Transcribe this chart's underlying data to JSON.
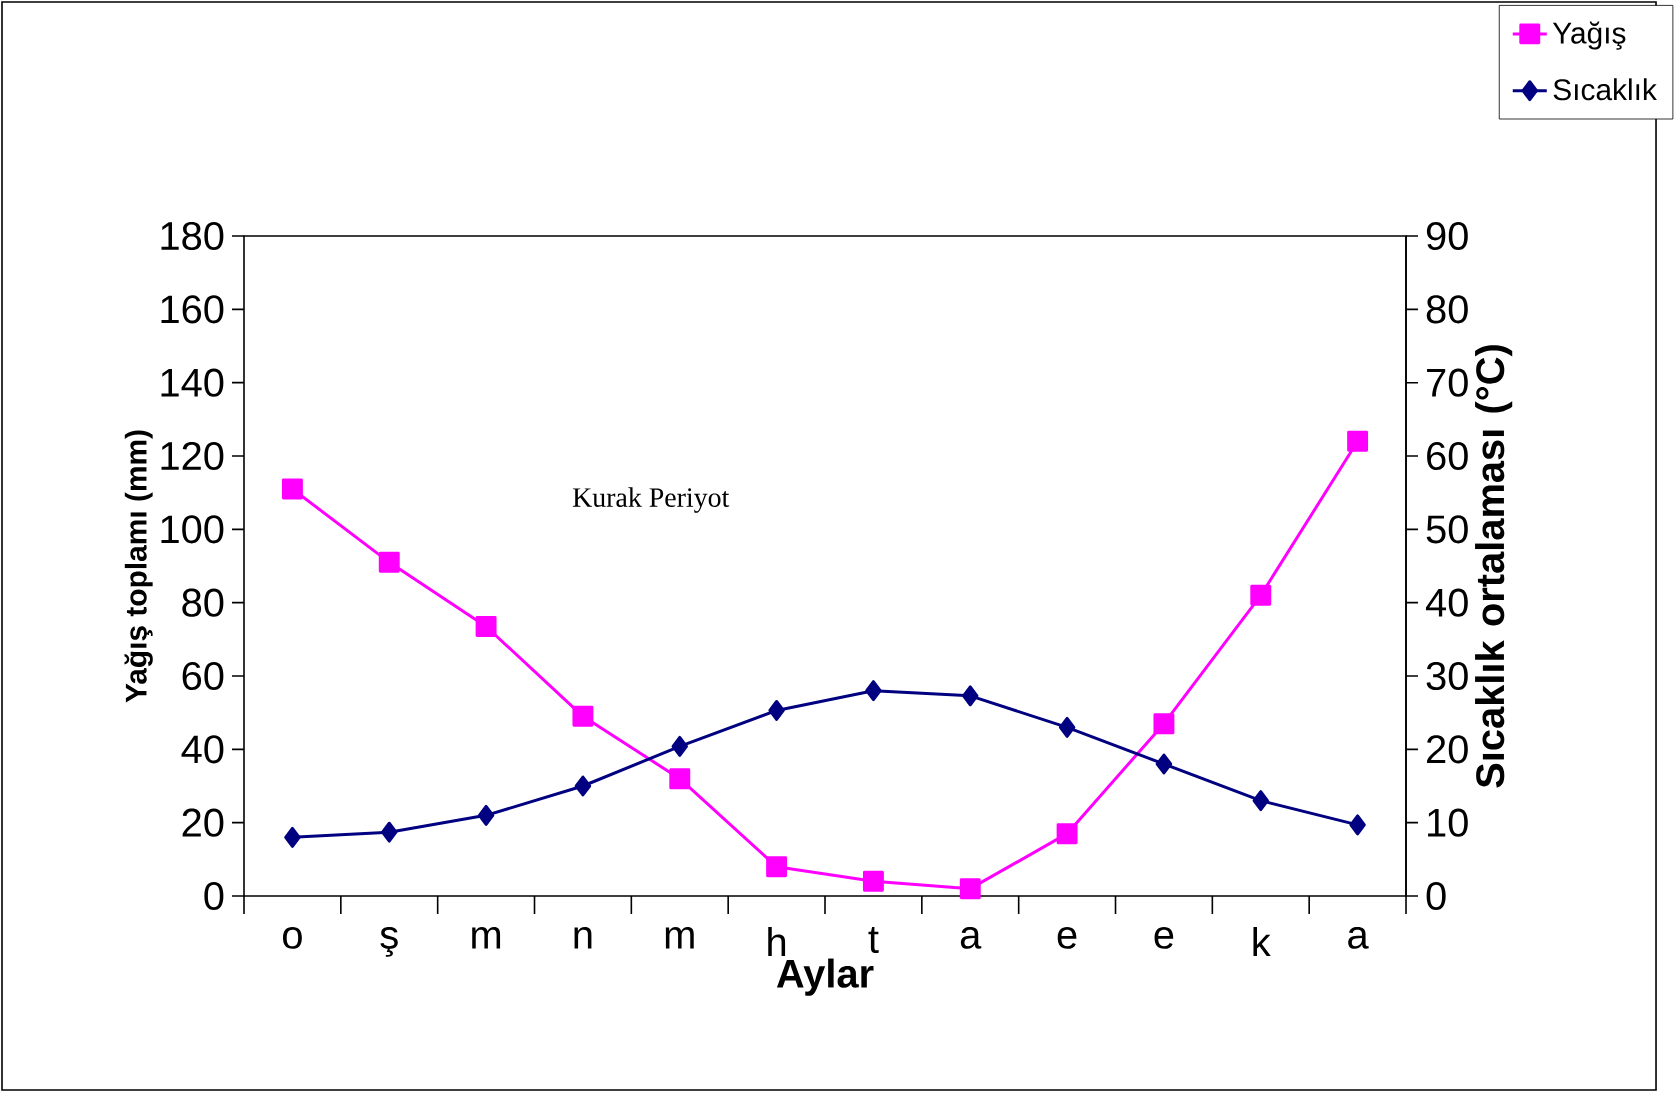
{
  "chart_data": {
    "type": "line",
    "categories": [
      "o",
      "ş",
      "m",
      "n",
      "m",
      "h",
      "t",
      "a",
      "e",
      "e",
      "k",
      "a"
    ],
    "xlabel": "Aylar",
    "ylabel": "Yağış toplamı (mm)",
    "y2label": "Sıcaklık ortalaması (°C)",
    "annotations": [
      "Kurak Periyot"
    ],
    "series": [
      {
        "name": "Yağış",
        "color": "#ff00ff",
        "marker": "square",
        "values": [
          111,
          91,
          73.5,
          49,
          32,
          8,
          4,
          2,
          17,
          47,
          82,
          124
        ]
      },
      {
        "name": "Sıcaklık",
        "color": "#000080",
        "marker": "diamond",
        "axis": "y2",
        "values": [
          8,
          8.7,
          11,
          15,
          20.4,
          25.3,
          28,
          27.3,
          23,
          18,
          13,
          9.7
        ]
      }
    ],
    "ylim": [
      0,
      180
    ],
    "yticks": [
      0,
      20,
      40,
      60,
      80,
      100,
      120,
      140,
      160,
      180
    ],
    "y2lim": [
      0,
      90
    ],
    "y2ticks": [
      0,
      10,
      20,
      30,
      40,
      50,
      60,
      70,
      80,
      90
    ],
    "grid": false,
    "legend": "top right",
    "line_style": "solid"
  }
}
